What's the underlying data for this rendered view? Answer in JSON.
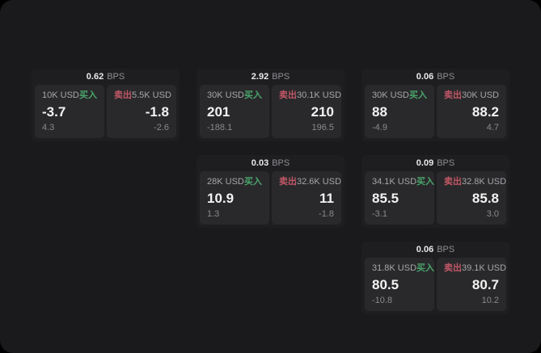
{
  "colors": {
    "page_bg": "#1a1a1c",
    "card_bg": "#1e1e20",
    "panel_bg": "#29292b",
    "buy_green": "#4aa56c",
    "sell_red": "#c05766",
    "label_gray": "#a6a6ab",
    "sub_gray": "#8a8a8e",
    "value_white": "#f2f2f2",
    "bps_gray": "#8e8e93"
  },
  "labels": {
    "bps_unit": "BPS",
    "buy": "买入",
    "sell": "卖出"
  },
  "cards": [
    {
      "bps": "0.62",
      "row": 1,
      "col": 1,
      "buy": {
        "amount": "10K USD",
        "value": "-3.7",
        "sub": "4.3"
      },
      "sell": {
        "amount": "5.5K USD",
        "value": "-1.8",
        "sub": "-2.6"
      }
    },
    {
      "bps": "2.92",
      "row": 1,
      "col": 2,
      "buy": {
        "amount": "30K USD",
        "value": "201",
        "sub": "-188.1"
      },
      "sell": {
        "amount": "30.1K USD",
        "value": "210",
        "sub": "196.5"
      }
    },
    {
      "bps": "0.06",
      "row": 1,
      "col": 3,
      "buy": {
        "amount": "30K USD",
        "value": "88",
        "sub": "-4.9"
      },
      "sell": {
        "amount": "30K USD",
        "value": "88.2",
        "sub": "4.7"
      }
    },
    {
      "bps": "0.03",
      "row": 2,
      "col": 2,
      "buy": {
        "amount": "28K USD",
        "value": "10.9",
        "sub": "1.3"
      },
      "sell": {
        "amount": "32.6K USD",
        "value": "11",
        "sub": "-1.8"
      }
    },
    {
      "bps": "0.09",
      "row": 2,
      "col": 3,
      "buy": {
        "amount": "34.1K USD",
        "value": "85.5",
        "sub": "-3.1"
      },
      "sell": {
        "amount": "32.8K USD",
        "value": "85.8",
        "sub": "3.0"
      }
    },
    {
      "bps": "0.06",
      "row": 3,
      "col": 3,
      "buy": {
        "amount": "31.8K USD",
        "value": "80.5",
        "sub": "-10.8"
      },
      "sell": {
        "amount": "39.1K USD",
        "value": "80.7",
        "sub": "10.2"
      }
    }
  ]
}
